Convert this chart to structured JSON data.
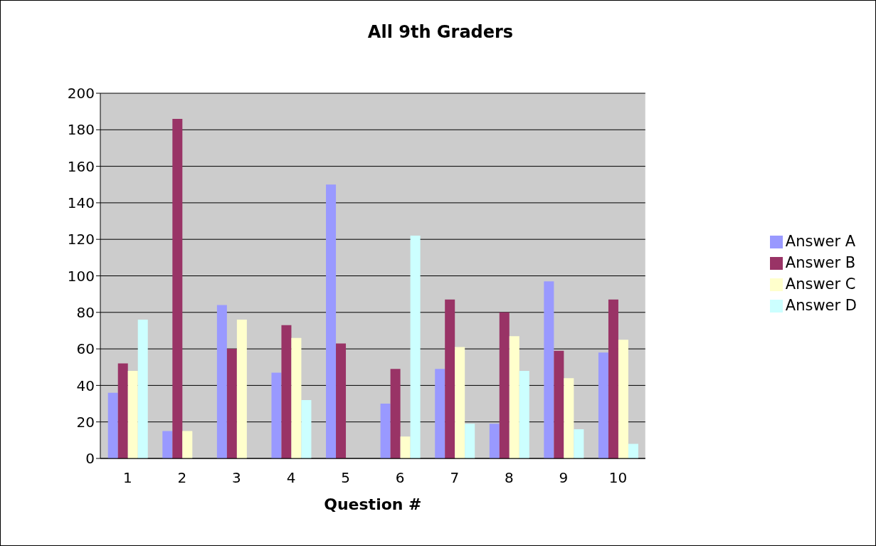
{
  "chart_data": {
    "type": "bar",
    "title": "All 9th Graders",
    "xlabel": "Question #",
    "categories": [
      "1",
      "2",
      "3",
      "4",
      "5",
      "6",
      "7",
      "8",
      "9",
      "10"
    ],
    "series": [
      {
        "name": "Answer A",
        "color": "#9999ff",
        "values": [
          36,
          15,
          84,
          47,
          150,
          30,
          49,
          19,
          97,
          58
        ]
      },
      {
        "name": "Answer B",
        "color": "#993366",
        "values": [
          52,
          186,
          60,
          73,
          63,
          49,
          87,
          80,
          59,
          87
        ]
      },
      {
        "name": "Answer C",
        "color": "#ffffcc",
        "values": [
          48,
          15,
          76,
          66,
          0,
          12,
          61,
          67,
          44,
          65
        ]
      },
      {
        "name": "Answer D",
        "color": "#ccffff",
        "values": [
          76,
          0,
          0,
          32,
          0,
          122,
          19,
          48,
          16,
          8
        ]
      }
    ],
    "ylim": [
      0,
      200
    ],
    "yticks": [
      0,
      20,
      40,
      60,
      80,
      100,
      120,
      140,
      160,
      180,
      200
    ],
    "grid": "y",
    "legend": "right"
  }
}
